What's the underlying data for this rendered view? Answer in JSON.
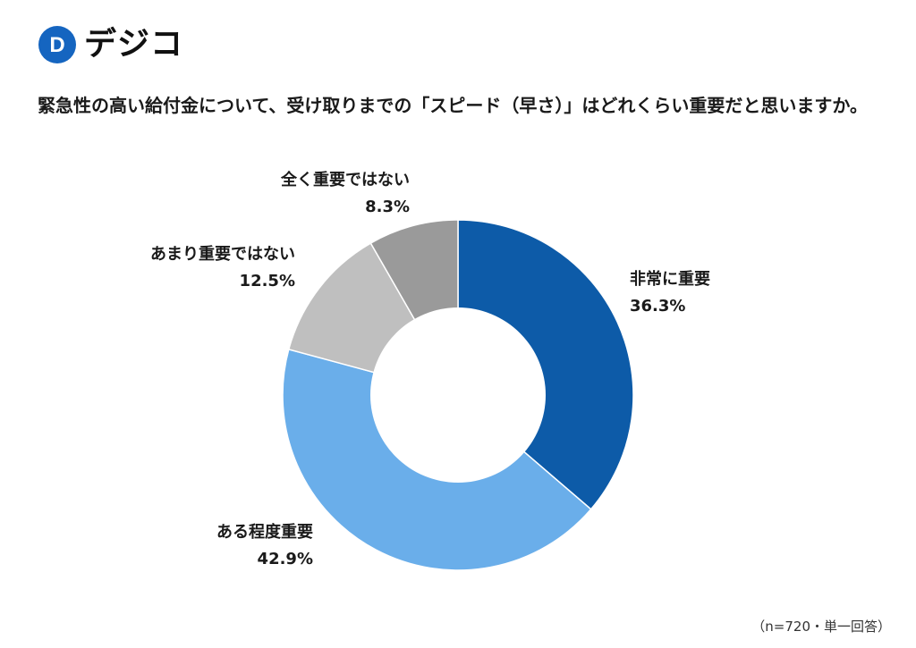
{
  "brand": {
    "name": "デジコ",
    "logo_letter": "D",
    "color": "#1565c0"
  },
  "question": "緊急性の高い給付金について、受け取りまでの「スピード（早さ）」はどれくらい重要だと思いますか。",
  "note": "（n=720・単一回答）",
  "chart_data": {
    "type": "pie",
    "donut": true,
    "title": "",
    "slices": [
      {
        "label": "非常に重要",
        "value": 36.3,
        "value_label": "36.3%",
        "color": "#0d5ba8"
      },
      {
        "label": "ある程度重要",
        "value": 42.9,
        "value_label": "42.9%",
        "color": "#6aaeea"
      },
      {
        "label": "あまり重要ではない",
        "value": 12.5,
        "value_label": "12.5%",
        "color": "#bfbfbf"
      },
      {
        "label": "全く重要ではない",
        "value": 8.3,
        "value_label": "8.3%",
        "color": "#9a9a9a"
      }
    ],
    "start": "12 o'clock",
    "direction": "clockwise",
    "legend": "none"
  }
}
